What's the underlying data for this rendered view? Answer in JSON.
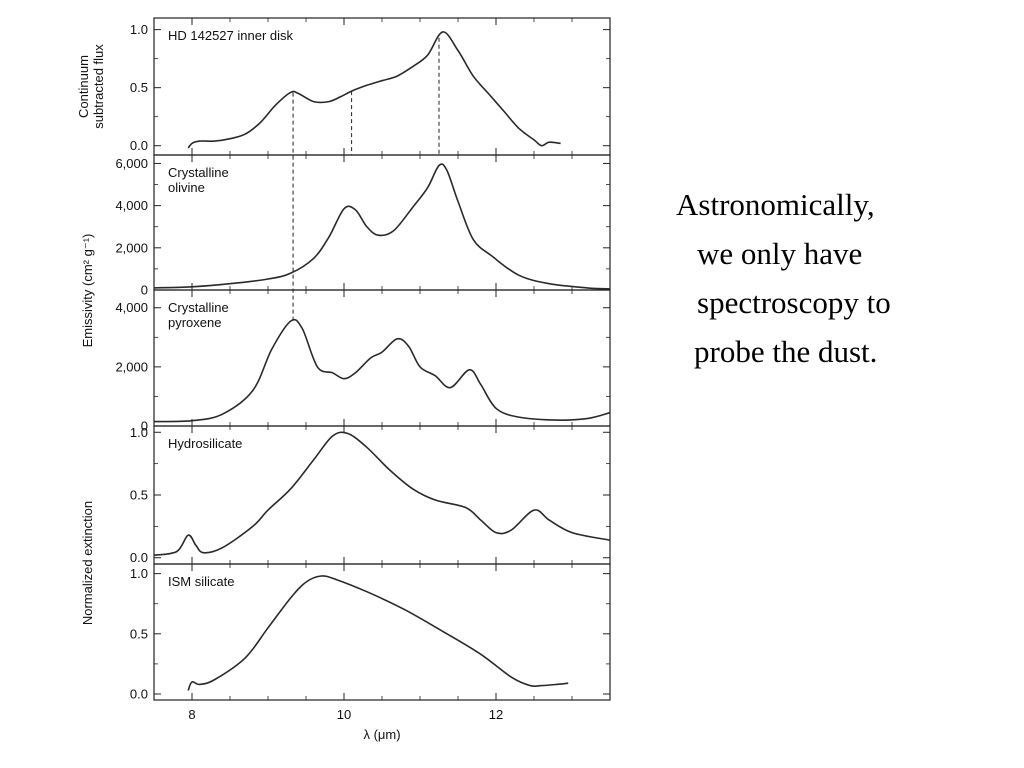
{
  "slide": {
    "caption_lines": [
      "Astronomically,",
      "we only have",
      "spectroscopy to",
      "probe the dust."
    ]
  },
  "chart_data": {
    "type": "line",
    "x_axis": {
      "label": "λ (μm)",
      "range": [
        7.5,
        13.5
      ],
      "major_ticks": [
        8,
        10,
        12
      ],
      "tick_labels": [
        "8",
        "10",
        "12"
      ]
    },
    "group_ylabels": [
      "Continuum subtracted flux",
      "Emissivity (cm² g⁻¹)",
      "Normalized extinction"
    ],
    "feature_markers_um": [
      9.33,
      10.1,
      11.25
    ],
    "panels": [
      {
        "label": "HD 142527 inner disk",
        "ylim": [
          -0.08,
          1.1
        ],
        "yticks": [
          0.0,
          0.5,
          1.0
        ],
        "yticklabels": [
          "0.0",
          "0.5",
          "1.0"
        ],
        "points": [
          [
            7.95,
            -0.02
          ],
          [
            8.0,
            0.02
          ],
          [
            8.1,
            0.04
          ],
          [
            8.3,
            0.04
          ],
          [
            8.5,
            0.06
          ],
          [
            8.7,
            0.1
          ],
          [
            8.9,
            0.2
          ],
          [
            9.1,
            0.35
          ],
          [
            9.3,
            0.46
          ],
          [
            9.4,
            0.45
          ],
          [
            9.6,
            0.38
          ],
          [
            9.8,
            0.38
          ],
          [
            9.95,
            0.42
          ],
          [
            10.1,
            0.47
          ],
          [
            10.3,
            0.52
          ],
          [
            10.5,
            0.56
          ],
          [
            10.7,
            0.6
          ],
          [
            10.9,
            0.68
          ],
          [
            11.1,
            0.78
          ],
          [
            11.3,
            0.98
          ],
          [
            11.5,
            0.82
          ],
          [
            11.7,
            0.6
          ],
          [
            11.9,
            0.45
          ],
          [
            12.1,
            0.3
          ],
          [
            12.3,
            0.15
          ],
          [
            12.5,
            0.05
          ],
          [
            12.6,
            0.0
          ],
          [
            12.7,
            0.03
          ],
          [
            12.85,
            0.02
          ]
        ]
      },
      {
        "label": "Crystalline olivine",
        "ylim": [
          0,
          6400
        ],
        "yticks": [
          0,
          2000,
          4000,
          6000
        ],
        "yticklabels": [
          "0",
          "2,000",
          "4,000",
          "6,000"
        ],
        "points": [
          [
            7.5,
            100
          ],
          [
            8.0,
            150
          ],
          [
            8.5,
            300
          ],
          [
            9.0,
            520
          ],
          [
            9.3,
            800
          ],
          [
            9.6,
            1500
          ],
          [
            9.8,
            2500
          ],
          [
            10.0,
            3850
          ],
          [
            10.15,
            3800
          ],
          [
            10.3,
            3000
          ],
          [
            10.45,
            2600
          ],
          [
            10.65,
            2800
          ],
          [
            10.9,
            3900
          ],
          [
            11.1,
            4850
          ],
          [
            11.25,
            5900
          ],
          [
            11.35,
            5700
          ],
          [
            11.5,
            4200
          ],
          [
            11.7,
            2400
          ],
          [
            11.95,
            1600
          ],
          [
            12.3,
            700
          ],
          [
            12.7,
            300
          ],
          [
            13.2,
            100
          ],
          [
            13.5,
            50
          ]
        ]
      },
      {
        "label": "Crystalline pyroxene",
        "ylim": [
          0,
          4600
        ],
        "yticks": [
          0,
          2000,
          4000
        ],
        "yticklabels": [
          "0",
          "2,000",
          "4,000"
        ],
        "points": [
          [
            7.5,
            150
          ],
          [
            8.0,
            180
          ],
          [
            8.4,
            400
          ],
          [
            8.8,
            1200
          ],
          [
            9.05,
            2600
          ],
          [
            9.3,
            3550
          ],
          [
            9.45,
            3300
          ],
          [
            9.65,
            2000
          ],
          [
            9.85,
            1800
          ],
          [
            10.0,
            1600
          ],
          [
            10.15,
            1800
          ],
          [
            10.35,
            2300
          ],
          [
            10.5,
            2500
          ],
          [
            10.7,
            2950
          ],
          [
            10.85,
            2700
          ],
          [
            11.0,
            2000
          ],
          [
            11.2,
            1700
          ],
          [
            11.4,
            1300
          ],
          [
            11.65,
            1900
          ],
          [
            11.8,
            1400
          ],
          [
            12.0,
            600
          ],
          [
            12.3,
            300
          ],
          [
            12.8,
            200
          ],
          [
            13.2,
            250
          ],
          [
            13.5,
            450
          ]
        ]
      },
      {
        "label": "Hydrosilicate",
        "ylim": [
          -0.05,
          1.05
        ],
        "yticks": [
          0.0,
          0.5,
          1.0
        ],
        "yticklabels": [
          "0.0",
          "0.5",
          "1.0"
        ],
        "points": [
          [
            7.5,
            0.02
          ],
          [
            7.8,
            0.05
          ],
          [
            7.95,
            0.18
          ],
          [
            8.05,
            0.1
          ],
          [
            8.15,
            0.04
          ],
          [
            8.4,
            0.08
          ],
          [
            8.8,
            0.25
          ],
          [
            9.0,
            0.38
          ],
          [
            9.3,
            0.55
          ],
          [
            9.6,
            0.78
          ],
          [
            9.85,
            0.97
          ],
          [
            10.05,
            0.99
          ],
          [
            10.3,
            0.88
          ],
          [
            10.6,
            0.7
          ],
          [
            10.9,
            0.55
          ],
          [
            11.2,
            0.46
          ],
          [
            11.6,
            0.4
          ],
          [
            11.8,
            0.3
          ],
          [
            12.0,
            0.2
          ],
          [
            12.2,
            0.22
          ],
          [
            12.5,
            0.38
          ],
          [
            12.7,
            0.3
          ],
          [
            13.0,
            0.2
          ],
          [
            13.5,
            0.14
          ]
        ]
      },
      {
        "label": "ISM silicate",
        "ylim": [
          -0.05,
          1.08
        ],
        "yticks": [
          0.0,
          0.5,
          1.0
        ],
        "yticklabels": [
          "0.0",
          "0.5",
          "1.0"
        ],
        "points": [
          [
            7.95,
            0.03
          ],
          [
            8.0,
            0.1
          ],
          [
            8.1,
            0.08
          ],
          [
            8.3,
            0.12
          ],
          [
            8.7,
            0.3
          ],
          [
            9.0,
            0.55
          ],
          [
            9.3,
            0.8
          ],
          [
            9.5,
            0.93
          ],
          [
            9.7,
            0.98
          ],
          [
            9.9,
            0.95
          ],
          [
            10.3,
            0.85
          ],
          [
            10.8,
            0.7
          ],
          [
            11.3,
            0.52
          ],
          [
            11.8,
            0.33
          ],
          [
            12.2,
            0.14
          ],
          [
            12.45,
            0.07
          ],
          [
            12.6,
            0.07
          ],
          [
            12.8,
            0.08
          ],
          [
            12.95,
            0.09
          ]
        ]
      }
    ]
  }
}
